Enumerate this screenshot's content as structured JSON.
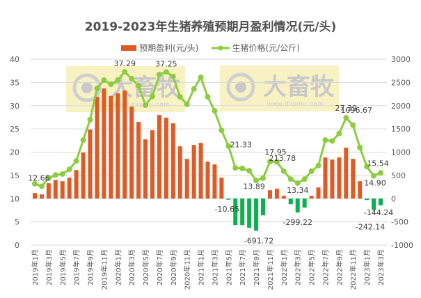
{
  "chart_data": {
    "type": "bar+line",
    "title": "2019-2023年生猪养殖预期月盈利情况(元/头)",
    "legend": [
      {
        "name": "预期盈利(元/头)",
        "kind": "bar",
        "color": "#E05A26"
      },
      {
        "name": "生猪价格(元/公斤)",
        "kind": "line",
        "color": "#8DCC3F"
      }
    ],
    "colors": {
      "profit_positive": "#E05A26",
      "profit_negative": "#0BB04F",
      "price_line": "#8DCC3F",
      "grid": "#D9D9D9",
      "watermark_bg": "#F7F0B8"
    },
    "left_axis": {
      "label": "生猪价格(元/公斤)",
      "min": 0,
      "max": 40,
      "ticks": [
        0,
        5,
        10,
        15,
        20,
        25,
        30,
        35,
        40
      ]
    },
    "right_axis": {
      "label": "预期盈利(元/头)",
      "min": -1000,
      "max": 3000,
      "ticks": [
        -1000,
        -500,
        0,
        500,
        1000,
        1500,
        2000,
        2500,
        3000
      ]
    },
    "x_tick_labels": [
      "2019年1月",
      "2019年3月",
      "2019年5月",
      "2019年7月",
      "2019年9月",
      "2019年11月",
      "2020年1月",
      "2020年3月",
      "2020年5月",
      "2020年7月",
      "2020年9月",
      "2020年11月",
      "2021年1月",
      "2021年3月",
      "2021年5月",
      "2021年7月",
      "2021年9月",
      "2021年11月",
      "2022年1月",
      "2022年3月",
      "2022年5月",
      "2022年7月",
      "2022年9月",
      "2022年11月",
      "2023年1月",
      "2023年3月"
    ],
    "categories": [
      "2019-01",
      "2019-02",
      "2019-03",
      "2019-04",
      "2019-05",
      "2019-06",
      "2019-07",
      "2019-08",
      "2019-09",
      "2019-10",
      "2019-11",
      "2019-12",
      "2020-01",
      "2020-02",
      "2020-03",
      "2020-04",
      "2020-05",
      "2020-06",
      "2020-07",
      "2020-08",
      "2020-09",
      "2020-10",
      "2020-11",
      "2020-12",
      "2021-01",
      "2021-02",
      "2021-03",
      "2021-04",
      "2021-05",
      "2021-06",
      "2021-07",
      "2021-08",
      "2021-09",
      "2021-10",
      "2021-11",
      "2021-12",
      "2022-01",
      "2022-02",
      "2022-03",
      "2022-04",
      "2022-05",
      "2022-06",
      "2022-07",
      "2022-08",
      "2022-09",
      "2022-10",
      "2022-11",
      "2022-12",
      "2023-01",
      "2023-02",
      "2023-03"
    ],
    "series": [
      {
        "name": "预期盈利(元/头)",
        "type": "bar",
        "axis": "right",
        "values": [
          120,
          90,
          330,
          400,
          375,
          450,
          615,
          990,
          1485,
          2190,
          2370,
          2205,
          2265,
          2325,
          1980,
          1650,
          1275,
          1470,
          1800,
          1740,
          1620,
          1125,
          855,
          1155,
          1200,
          795,
          735,
          450,
          -10.65,
          -570,
          -570,
          -630,
          -691.72,
          -360,
          180,
          213.78,
          60,
          -120,
          -299.22,
          -195,
          60,
          240,
          885,
          840,
          885,
          1096.67,
          855,
          375,
          -30,
          -242.14,
          -144.24
        ]
      },
      {
        "name": "生猪价格(元/公斤)",
        "type": "line",
        "axis": "left",
        "values": [
          13.2,
          12.66,
          14.4,
          15.1,
          15.3,
          16.3,
          18.1,
          22.6,
          27.0,
          33.7,
          35.5,
          34.6,
          35.5,
          37.29,
          35.8,
          34.3,
          30.1,
          32.0,
          36.7,
          37.25,
          36.3,
          31.9,
          30.3,
          33.6,
          36.1,
          31.9,
          28.9,
          24.7,
          21.33,
          16.6,
          16.5,
          16.0,
          13.89,
          14.4,
          17.95,
          17.9,
          15.9,
          14.2,
          13.34,
          14.2,
          15.9,
          17.1,
          22.6,
          22.4,
          24.0,
          27.39,
          25.8,
          21.0,
          16.9,
          14.9,
          15.54
        ]
      }
    ],
    "annotations": [
      {
        "series": "price",
        "index": 1,
        "text": "12.66"
      },
      {
        "series": "price",
        "index": 13,
        "text": "37.29"
      },
      {
        "series": "price",
        "index": 19,
        "text": "37.25"
      },
      {
        "series": "price",
        "index": 28,
        "text": "21.33"
      },
      {
        "series": "price",
        "index": 32,
        "text": "13.89"
      },
      {
        "series": "price",
        "index": 34,
        "text": "17.95"
      },
      {
        "series": "price",
        "index": 38,
        "text": "13.34"
      },
      {
        "series": "price",
        "index": 45,
        "text": "27.39"
      },
      {
        "series": "price",
        "index": 49,
        "text": "14.90"
      },
      {
        "series": "price",
        "index": 50,
        "text": "15.54"
      },
      {
        "series": "profit",
        "index": 28,
        "text": "-10.65"
      },
      {
        "series": "profit",
        "index": 32,
        "text": "-691.72"
      },
      {
        "series": "profit",
        "index": 35,
        "text": "213.78"
      },
      {
        "series": "profit",
        "index": 38,
        "text": "-299.22"
      },
      {
        "series": "profit",
        "index": 45,
        "text": "1096.67"
      },
      {
        "series": "profit",
        "index": 49,
        "text": "-242.14"
      },
      {
        "series": "profit",
        "index": 50,
        "text": "-144.24"
      }
    ],
    "grid": true,
    "legend_position": "top"
  },
  "watermark": {
    "brand": "大畜牧",
    "url": "www.dxumu.com"
  }
}
